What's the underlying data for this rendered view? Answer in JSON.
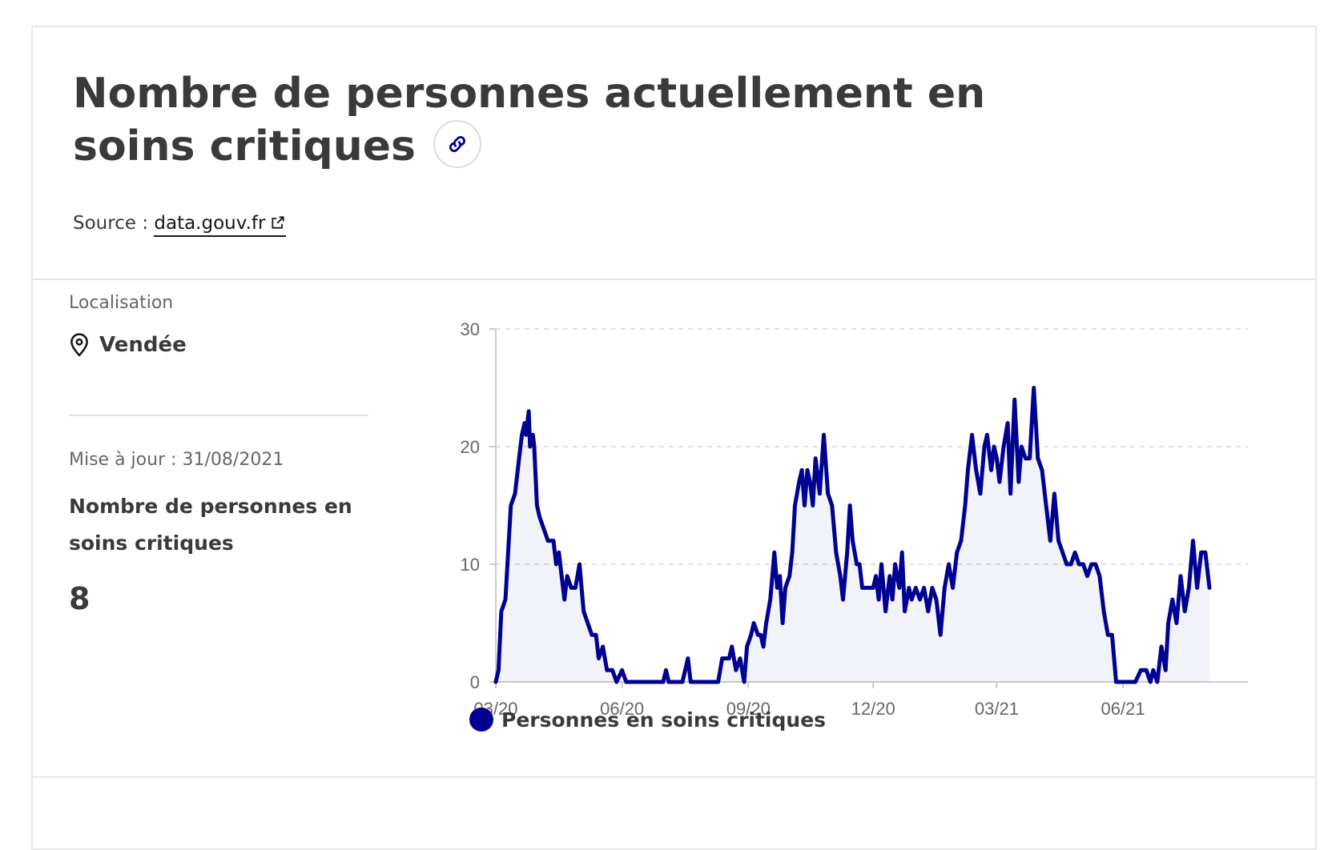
{
  "header": {
    "title": "Nombre de personnes actuellement en soins critiques",
    "link_icon": "link-icon",
    "source_label": "Source : ",
    "source_link": "data.gouv.fr",
    "external_icon": "external-link-icon"
  },
  "sidebar": {
    "location_label": "Localisation",
    "location_value": "Vendée",
    "location_icon": "map-pin-icon",
    "update_label": "Mise à jour : 31/08/2021",
    "metric_label": "Nombre de personnes en soins critiques",
    "metric_value": "8"
  },
  "chart_data": {
    "type": "area",
    "title": "",
    "xlabel": "",
    "ylabel": "",
    "x_range": [
      "2020-03-01",
      "2021-08-31"
    ],
    "ylim": [
      0,
      30
    ],
    "y_ticks": [
      0,
      10,
      20,
      30
    ],
    "x_ticks": [
      {
        "date": "2020-03-01",
        "label": "03/20"
      },
      {
        "date": "2020-06-01",
        "label": "06/20"
      },
      {
        "date": "2020-09-01",
        "label": "09/20"
      },
      {
        "date": "2020-12-01",
        "label": "12/20"
      },
      {
        "date": "2021-03-01",
        "label": "03/21"
      },
      {
        "date": "2021-06-01",
        "label": "06/21"
      }
    ],
    "grid": true,
    "color": "#000091",
    "legend": {
      "position": "bottom-left",
      "label": "Personnes en soins critiques"
    },
    "series": [
      {
        "name": "Personnes en soins critiques",
        "points": [
          [
            "2020-03-01",
            0
          ],
          [
            "2020-03-03",
            1
          ],
          [
            "2020-03-05",
            6
          ],
          [
            "2020-03-08",
            7
          ],
          [
            "2020-03-10",
            11
          ],
          [
            "2020-03-12",
            15
          ],
          [
            "2020-03-15",
            16
          ],
          [
            "2020-03-18",
            19
          ],
          [
            "2020-03-20",
            21
          ],
          [
            "2020-03-22",
            22
          ],
          [
            "2020-03-23",
            21
          ],
          [
            "2020-03-25",
            23
          ],
          [
            "2020-03-26",
            20
          ],
          [
            "2020-03-28",
            21
          ],
          [
            "2020-03-29",
            20
          ],
          [
            "2020-03-31",
            15
          ],
          [
            "2020-04-02",
            14
          ],
          [
            "2020-04-05",
            13
          ],
          [
            "2020-04-08",
            12
          ],
          [
            "2020-04-12",
            12
          ],
          [
            "2020-04-14",
            10
          ],
          [
            "2020-04-16",
            11
          ],
          [
            "2020-04-18",
            9
          ],
          [
            "2020-04-20",
            7
          ],
          [
            "2020-04-22",
            9
          ],
          [
            "2020-04-25",
            8
          ],
          [
            "2020-04-28",
            8
          ],
          [
            "2020-05-01",
            10
          ],
          [
            "2020-05-04",
            6
          ],
          [
            "2020-05-07",
            5
          ],
          [
            "2020-05-10",
            4
          ],
          [
            "2020-05-13",
            4
          ],
          [
            "2020-05-15",
            2
          ],
          [
            "2020-05-18",
            3
          ],
          [
            "2020-05-21",
            1
          ],
          [
            "2020-05-25",
            1
          ],
          [
            "2020-05-28",
            0
          ],
          [
            "2020-06-01",
            1
          ],
          [
            "2020-06-04",
            0
          ],
          [
            "2020-06-15",
            0
          ],
          [
            "2020-07-01",
            0
          ],
          [
            "2020-07-03",
            1
          ],
          [
            "2020-07-05",
            0
          ],
          [
            "2020-07-15",
            0
          ],
          [
            "2020-07-19",
            2
          ],
          [
            "2020-07-21",
            0
          ],
          [
            "2020-08-01",
            0
          ],
          [
            "2020-08-10",
            0
          ],
          [
            "2020-08-13",
            2
          ],
          [
            "2020-08-18",
            2
          ],
          [
            "2020-08-20",
            3
          ],
          [
            "2020-08-23",
            1
          ],
          [
            "2020-08-26",
            2
          ],
          [
            "2020-08-29",
            0
          ],
          [
            "2020-08-31",
            3
          ],
          [
            "2020-09-03",
            4
          ],
          [
            "2020-09-05",
            5
          ],
          [
            "2020-09-08",
            4
          ],
          [
            "2020-09-10",
            4
          ],
          [
            "2020-09-12",
            3
          ],
          [
            "2020-09-14",
            5
          ],
          [
            "2020-09-17",
            7
          ],
          [
            "2020-09-20",
            11
          ],
          [
            "2020-09-22",
            8
          ],
          [
            "2020-09-24",
            9
          ],
          [
            "2020-09-26",
            5
          ],
          [
            "2020-09-28",
            8
          ],
          [
            "2020-10-01",
            9
          ],
          [
            "2020-10-03",
            11
          ],
          [
            "2020-10-05",
            15
          ],
          [
            "2020-10-08",
            17
          ],
          [
            "2020-10-10",
            18
          ],
          [
            "2020-10-12",
            15
          ],
          [
            "2020-10-14",
            18
          ],
          [
            "2020-10-16",
            17
          ],
          [
            "2020-10-18",
            15
          ],
          [
            "2020-10-20",
            19
          ],
          [
            "2020-10-23",
            16
          ],
          [
            "2020-10-26",
            21
          ],
          [
            "2020-10-29",
            16
          ],
          [
            "2020-11-01",
            15
          ],
          [
            "2020-11-04",
            11
          ],
          [
            "2020-11-07",
            9
          ],
          [
            "2020-11-09",
            7
          ],
          [
            "2020-11-12",
            11
          ],
          [
            "2020-11-14",
            15
          ],
          [
            "2020-11-16",
            12
          ],
          [
            "2020-11-19",
            10
          ],
          [
            "2020-11-21",
            10
          ],
          [
            "2020-11-23",
            8
          ],
          [
            "2020-11-25",
            8
          ],
          [
            "2020-12-01",
            8
          ],
          [
            "2020-12-03",
            9
          ],
          [
            "2020-12-05",
            7
          ],
          [
            "2020-12-07",
            10
          ],
          [
            "2020-12-10",
            6
          ],
          [
            "2020-12-13",
            9
          ],
          [
            "2020-12-15",
            7
          ],
          [
            "2020-12-17",
            10
          ],
          [
            "2020-12-20",
            8
          ],
          [
            "2020-12-22",
            11
          ],
          [
            "2020-12-24",
            6
          ],
          [
            "2020-12-27",
            8
          ],
          [
            "2020-12-29",
            7
          ],
          [
            "2021-01-01",
            8
          ],
          [
            "2021-01-04",
            7
          ],
          [
            "2021-01-07",
            8
          ],
          [
            "2021-01-10",
            6
          ],
          [
            "2021-01-13",
            8
          ],
          [
            "2021-01-16",
            7
          ],
          [
            "2021-01-19",
            4
          ],
          [
            "2021-01-22",
            8
          ],
          [
            "2021-01-25",
            10
          ],
          [
            "2021-01-28",
            8
          ],
          [
            "2021-01-31",
            11
          ],
          [
            "2021-02-03",
            12
          ],
          [
            "2021-02-06",
            15
          ],
          [
            "2021-02-08",
            18
          ],
          [
            "2021-02-11",
            21
          ],
          [
            "2021-02-14",
            18
          ],
          [
            "2021-02-17",
            16
          ],
          [
            "2021-02-20",
            20
          ],
          [
            "2021-02-22",
            21
          ],
          [
            "2021-02-25",
            18
          ],
          [
            "2021-02-27",
            20
          ],
          [
            "2021-03-01",
            19
          ],
          [
            "2021-03-03",
            17
          ],
          [
            "2021-03-06",
            20
          ],
          [
            "2021-03-09",
            22
          ],
          [
            "2021-03-11",
            16
          ],
          [
            "2021-03-14",
            24
          ],
          [
            "2021-03-17",
            17
          ],
          [
            "2021-03-19",
            20
          ],
          [
            "2021-03-22",
            19
          ],
          [
            "2021-03-25",
            19
          ],
          [
            "2021-03-28",
            25
          ],
          [
            "2021-03-31",
            19
          ],
          [
            "2021-04-03",
            18
          ],
          [
            "2021-04-06",
            15
          ],
          [
            "2021-04-09",
            12
          ],
          [
            "2021-04-12",
            16
          ],
          [
            "2021-04-15",
            12
          ],
          [
            "2021-04-18",
            11
          ],
          [
            "2021-04-21",
            10
          ],
          [
            "2021-04-24",
            10
          ],
          [
            "2021-04-27",
            11
          ],
          [
            "2021-04-30",
            10
          ],
          [
            "2021-05-03",
            10
          ],
          [
            "2021-05-06",
            9
          ],
          [
            "2021-05-09",
            10
          ],
          [
            "2021-05-12",
            10
          ],
          [
            "2021-05-15",
            9
          ],
          [
            "2021-05-18",
            6
          ],
          [
            "2021-05-21",
            4
          ],
          [
            "2021-05-24",
            4
          ],
          [
            "2021-05-27",
            0
          ],
          [
            "2021-06-01",
            0
          ],
          [
            "2021-06-10",
            0
          ],
          [
            "2021-06-14",
            1
          ],
          [
            "2021-06-18",
            1
          ],
          [
            "2021-06-21",
            0
          ],
          [
            "2021-06-23",
            1
          ],
          [
            "2021-06-26",
            0
          ],
          [
            "2021-06-29",
            3
          ],
          [
            "2021-07-02",
            1
          ],
          [
            "2021-07-04",
            5
          ],
          [
            "2021-07-07",
            7
          ],
          [
            "2021-07-10",
            5
          ],
          [
            "2021-07-13",
            9
          ],
          [
            "2021-07-16",
            6
          ],
          [
            "2021-07-19",
            8
          ],
          [
            "2021-07-22",
            12
          ],
          [
            "2021-07-25",
            8
          ],
          [
            "2021-07-28",
            11
          ],
          [
            "2021-07-31",
            11
          ],
          [
            "2021-08-03",
            8
          ]
        ]
      }
    ]
  }
}
